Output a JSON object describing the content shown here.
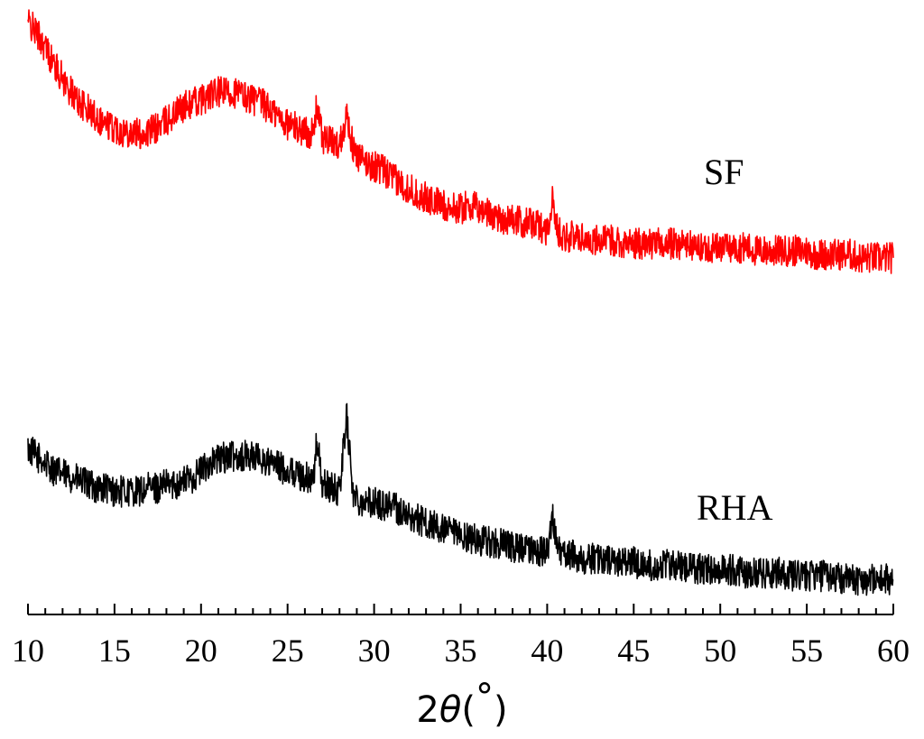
{
  "chart_data": {
    "type": "line",
    "xlabel": "2θ(°)",
    "xlabel_parts": {
      "prefix": "2",
      "symbol": "θ",
      "paren_open": "(",
      "unit": "°",
      "paren_close": ")"
    },
    "ylabel": "",
    "xlim": [
      10,
      60
    ],
    "x_ticks": [
      "10",
      "15",
      "20",
      "25",
      "30",
      "35",
      "40",
      "45",
      "50",
      "55",
      "60"
    ],
    "grid": false,
    "legend": "none",
    "colors": {
      "SF": "#ff0000",
      "RHA": "#000000",
      "axis": "#000000"
    },
    "series": [
      {
        "name": "SF",
        "x": [
          10,
          10.5,
          11,
          11.5,
          12,
          12.5,
          13,
          13.5,
          14,
          14.5,
          15,
          15.5,
          16,
          16.5,
          17,
          17.5,
          18,
          18.5,
          19,
          19.5,
          20,
          20.5,
          21,
          21.5,
          22,
          22.5,
          23,
          23.5,
          24,
          24.5,
          25,
          25.5,
          26,
          26.5,
          26.7,
          27,
          27.5,
          28,
          28.4,
          28.8,
          29,
          29.5,
          30,
          30.5,
          31,
          31.5,
          32,
          32.5,
          33,
          33.5,
          34,
          34.5,
          35,
          35.5,
          36,
          36.5,
          37,
          37.5,
          38,
          38.5,
          39,
          39.5,
          40,
          40.3,
          40.6,
          41,
          41.5,
          42,
          42.5,
          43,
          43.5,
          44,
          44.5,
          45,
          45.5,
          46,
          46.5,
          47,
          47.5,
          48,
          48.5,
          49,
          49.5,
          50,
          50.5,
          51,
          51.5,
          52,
          52.5,
          53,
          53.5,
          54,
          54.5,
          55,
          55.5,
          56,
          56.5,
          57,
          57.5,
          58,
          58.5,
          59,
          59.5,
          60
        ],
        "intensity": [
          95,
          92,
          88,
          83,
          79,
          75,
          72,
          70,
          68,
          66,
          65,
          64,
          64,
          63,
          64,
          65,
          67,
          69,
          71,
          72,
          73,
          74,
          75,
          75,
          75,
          74,
          73,
          72,
          70,
          68,
          66,
          65,
          64,
          63,
          72,
          62,
          61,
          60,
          69,
          59,
          57,
          55,
          54,
          53,
          51,
          49,
          48,
          46,
          45,
          44,
          43,
          42,
          42,
          43,
          42,
          41,
          40,
          39,
          39,
          38,
          38,
          37,
          36,
          44,
          36,
          34,
          34,
          34,
          33,
          33,
          33,
          33,
          32,
          32,
          32,
          32,
          32,
          32,
          32,
          32,
          31,
          31,
          31,
          31,
          31,
          31,
          31,
          30,
          30,
          30,
          30,
          30,
          30,
          30,
          29,
          29,
          29,
          29,
          29,
          28,
          28,
          28,
          28,
          28
        ]
      },
      {
        "name": "RHA",
        "x": [
          10,
          10.5,
          11,
          11.5,
          12,
          12.5,
          13,
          13.5,
          14,
          14.5,
          15,
          15.5,
          16,
          16.5,
          17,
          17.5,
          18,
          18.5,
          19,
          19.5,
          20,
          20.5,
          21,
          21.5,
          22,
          22.5,
          23,
          23.5,
          24,
          24.5,
          25,
          25.5,
          26,
          26.5,
          26.7,
          27,
          27.5,
          28,
          28.4,
          28.8,
          29,
          29.5,
          30,
          30.5,
          31,
          31.5,
          32,
          32.5,
          33,
          33.5,
          34,
          34.5,
          35,
          35.5,
          36,
          36.5,
          37,
          37.5,
          38,
          38.5,
          39,
          39.5,
          40,
          40.3,
          40.6,
          41,
          41.5,
          42,
          42.5,
          43,
          43.5,
          44,
          44.5,
          45,
          45.5,
          46,
          46.5,
          47,
          47.5,
          48,
          48.5,
          49,
          49.5,
          50,
          50.5,
          51,
          51.5,
          52,
          52.5,
          53,
          53.5,
          54,
          54.5,
          55,
          55.5,
          56,
          56.5,
          57,
          57.5,
          58,
          58.5,
          59,
          59.5,
          60
        ],
        "intensity": [
          48,
          46,
          44,
          42,
          41,
          40,
          39,
          38,
          37,
          37,
          36,
          36,
          36,
          36,
          37,
          37,
          38,
          38,
          39,
          40,
          42,
          44,
          45,
          46,
          46,
          46,
          46,
          45,
          44,
          43,
          42,
          41,
          40,
          39,
          51,
          38,
          37,
          36,
          58,
          35,
          34,
          33,
          33,
          32,
          33,
          30,
          29,
          28,
          27,
          26,
          25,
          24,
          23,
          23,
          22,
          22,
          21,
          21,
          20,
          20,
          19,
          19,
          19,
          29,
          19,
          18,
          18,
          17,
          17,
          17,
          16,
          16,
          16,
          16,
          15,
          15,
          15,
          15,
          15,
          14,
          14,
          14,
          14,
          14,
          14,
          13,
          13,
          13,
          13,
          13,
          13,
          12,
          12,
          12,
          12,
          12,
          12,
          11,
          11,
          11,
          11,
          11,
          11,
          11
        ]
      }
    ]
  }
}
